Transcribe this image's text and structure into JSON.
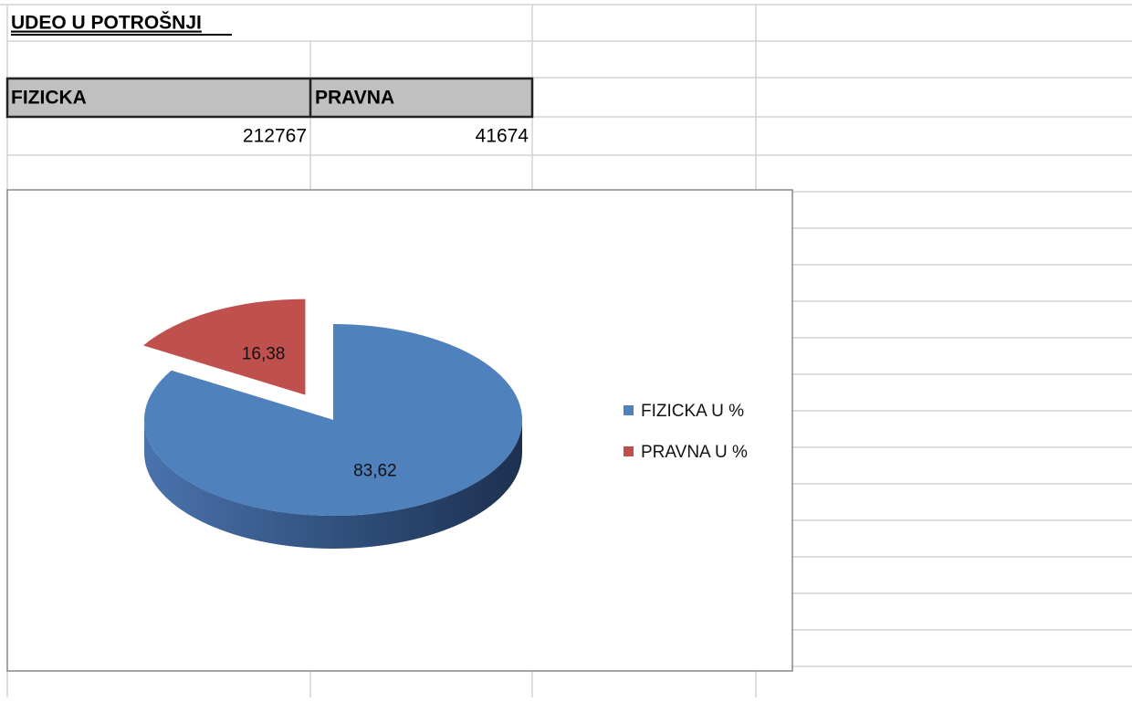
{
  "sheet": {
    "title": "UDEO U POTROŠNJI",
    "headers": [
      "FIZICKA",
      "PRAVNA"
    ],
    "values": [
      212767,
      41674
    ]
  },
  "chart_data": {
    "type": "pie",
    "categories": [
      "FIZICKA U %",
      "PRAVNA U %"
    ],
    "values": [
      83.62,
      16.38
    ],
    "value_labels": [
      "83,62",
      "16,38"
    ],
    "colors": [
      "#4f81bd",
      "#c0504d"
    ],
    "legend": "right"
  }
}
